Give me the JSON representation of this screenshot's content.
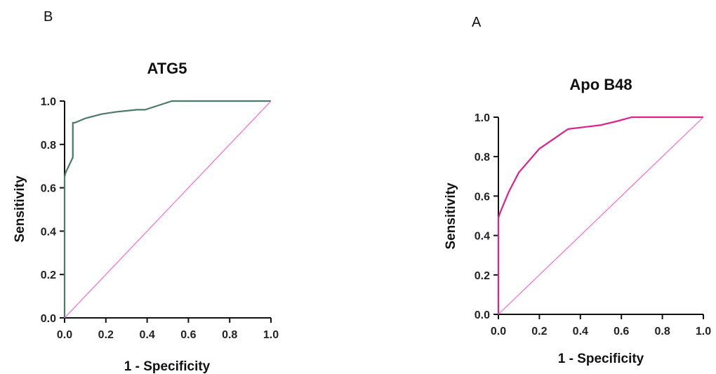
{
  "chart_data": [
    {
      "type": "line",
      "panel_label": "B",
      "title": "ATG5",
      "xlabel": "1 - Specificity",
      "ylabel": "Sensitivity",
      "xlim": [
        0,
        1
      ],
      "ylim": [
        0,
        1
      ],
      "xticks": [
        "0.0",
        "0.2",
        "0.4",
        "0.6",
        "0.8",
        "1.0"
      ],
      "yticks": [
        "0.0",
        "0.2",
        "0.4",
        "0.6",
        "0.8",
        "1.0"
      ],
      "grid": false,
      "series": [
        {
          "color": "#4a7a6c",
          "x": [
            0.0,
            0.0,
            0.005,
            0.04,
            0.04,
            0.05,
            0.1,
            0.18,
            0.25,
            0.35,
            0.39,
            0.52,
            0.7,
            1.0
          ],
          "y": [
            0.0,
            0.65,
            0.67,
            0.74,
            0.9,
            0.9,
            0.92,
            0.94,
            0.95,
            0.96,
            0.96,
            1.0,
            1.0,
            1.0
          ]
        },
        {
          "color": "#ff66cc",
          "x": [
            0,
            1
          ],
          "y": [
            0,
            1
          ]
        }
      ]
    },
    {
      "type": "line",
      "panel_label": "A",
      "title": "Apo B48",
      "xlabel": "1 - Specificity",
      "ylabel": "Sensitivity",
      "xlim": [
        0,
        1
      ],
      "ylim": [
        0,
        1
      ],
      "xticks": [
        "0.0",
        "0.2",
        "0.4",
        "0.6",
        "0.8",
        "1.0"
      ],
      "yticks": [
        "0.0",
        "0.2",
        "0.4",
        "0.6",
        "0.8",
        "1.0"
      ],
      "grid": false,
      "series": [
        {
          "color": "#e0208a",
          "x": [
            0.0,
            0.0,
            0.01,
            0.05,
            0.1,
            0.15,
            0.2,
            0.27,
            0.34,
            0.42,
            0.5,
            0.58,
            0.65,
            0.8,
            1.0
          ],
          "y": [
            0.0,
            0.49,
            0.52,
            0.62,
            0.72,
            0.78,
            0.84,
            0.89,
            0.94,
            0.95,
            0.96,
            0.98,
            1.0,
            1.0,
            1.0
          ]
        },
        {
          "color": "#ff66cc",
          "x": [
            0,
            1
          ],
          "y": [
            0,
            1
          ]
        }
      ]
    }
  ]
}
